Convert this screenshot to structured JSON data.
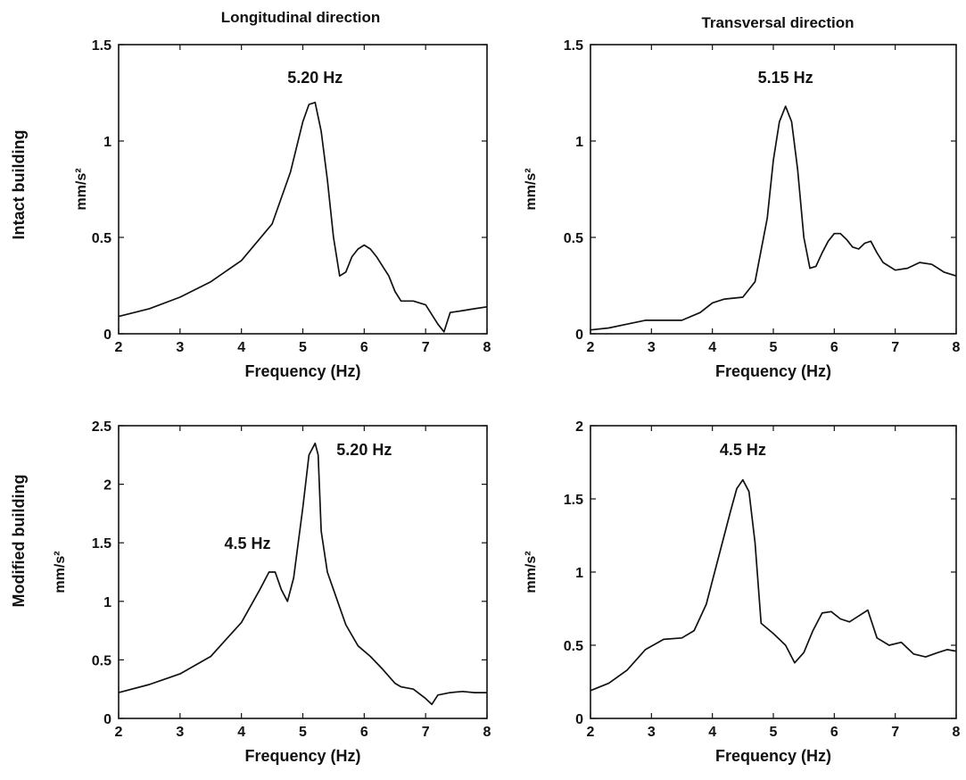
{
  "column_titles": [
    "Longitudinal direction",
    "Transversal direction"
  ],
  "row_labels": [
    "Intact building",
    "Modified building"
  ],
  "chart_data": [
    {
      "type": "line",
      "xlabel": "Frequency (Hz)",
      "ylabel": "mm/s²",
      "xlim": [
        2,
        8
      ],
      "ylim": [
        0,
        1.5
      ],
      "xticks": [
        "2",
        "3",
        "4",
        "5",
        "6",
        "7",
        "8"
      ],
      "yticks": [
        "0",
        "0.5",
        "1",
        "1.5"
      ],
      "annotations": [
        {
          "text": "5.20 Hz",
          "x": 5.2,
          "y": 1.3
        }
      ],
      "series": [
        {
          "x": [
            2.0,
            2.5,
            3.0,
            3.5,
            4.0,
            4.5,
            4.8,
            5.0,
            5.1,
            5.2,
            5.3,
            5.4,
            5.5,
            5.6,
            5.7,
            5.8,
            5.9,
            6.0,
            6.1,
            6.2,
            6.3,
            6.4,
            6.5,
            6.6,
            6.7,
            6.8,
            7.0,
            7.1,
            7.2,
            7.3,
            7.4,
            7.6,
            7.8,
            8.0
          ],
          "y": [
            0.09,
            0.13,
            0.19,
            0.27,
            0.38,
            0.57,
            0.84,
            1.1,
            1.19,
            1.2,
            1.05,
            0.8,
            0.5,
            0.3,
            0.32,
            0.4,
            0.44,
            0.46,
            0.44,
            0.4,
            0.35,
            0.3,
            0.22,
            0.17,
            0.17,
            0.17,
            0.15,
            0.1,
            0.05,
            0.01,
            0.11,
            0.12,
            0.13,
            0.14
          ]
        }
      ]
    },
    {
      "type": "line",
      "xlabel": "Frequency (Hz)",
      "ylabel": "mm/s²",
      "xlim": [
        2,
        8
      ],
      "ylim": [
        0,
        1.5
      ],
      "xticks": [
        "2",
        "3",
        "4",
        "5",
        "6",
        "7",
        "8"
      ],
      "yticks": [
        "0",
        "0.5",
        "1",
        "1.5"
      ],
      "annotations": [
        {
          "text": "5.15 Hz",
          "x": 5.2,
          "y": 1.3
        }
      ],
      "series": [
        {
          "x": [
            2.0,
            2.3,
            2.6,
            2.9,
            3.2,
            3.5,
            3.8,
            4.0,
            4.2,
            4.5,
            4.7,
            4.9,
            5.0,
            5.1,
            5.2,
            5.3,
            5.4,
            5.5,
            5.6,
            5.7,
            5.8,
            5.9,
            6.0,
            6.1,
            6.2,
            6.3,
            6.4,
            6.5,
            6.6,
            6.7,
            6.8,
            7.0,
            7.2,
            7.4,
            7.6,
            7.8,
            8.0
          ],
          "y": [
            0.02,
            0.03,
            0.05,
            0.07,
            0.07,
            0.07,
            0.11,
            0.16,
            0.18,
            0.19,
            0.27,
            0.6,
            0.9,
            1.1,
            1.18,
            1.1,
            0.85,
            0.5,
            0.34,
            0.35,
            0.42,
            0.48,
            0.52,
            0.52,
            0.49,
            0.45,
            0.44,
            0.47,
            0.48,
            0.42,
            0.37,
            0.33,
            0.34,
            0.37,
            0.36,
            0.32,
            0.3
          ]
        }
      ]
    },
    {
      "type": "line",
      "xlabel": "Frequency (Hz)",
      "ylabel": "mm/s²",
      "xlim": [
        2,
        8
      ],
      "ylim": [
        0,
        2.5
      ],
      "xticks": [
        "2",
        "3",
        "4",
        "5",
        "6",
        "7",
        "8"
      ],
      "yticks": [
        "0",
        "0.5",
        "1",
        "1.5",
        "2",
        "2.5"
      ],
      "annotations": [
        {
          "text": "4.5 Hz",
          "x": 4.1,
          "y": 1.45
        },
        {
          "text": "5.20 Hz",
          "x": 6.0,
          "y": 2.25
        }
      ],
      "series": [
        {
          "x": [
            2.0,
            2.5,
            3.0,
            3.5,
            4.0,
            4.3,
            4.45,
            4.55,
            4.65,
            4.75,
            4.85,
            5.0,
            5.1,
            5.2,
            5.25,
            5.3,
            5.4,
            5.5,
            5.7,
            5.9,
            6.1,
            6.3,
            6.5,
            6.6,
            6.8,
            7.0,
            7.1,
            7.2,
            7.4,
            7.6,
            7.8,
            8.0
          ],
          "y": [
            0.22,
            0.29,
            0.38,
            0.53,
            0.82,
            1.1,
            1.25,
            1.25,
            1.1,
            1.0,
            1.2,
            1.8,
            2.25,
            2.35,
            2.25,
            1.6,
            1.25,
            1.1,
            0.8,
            0.62,
            0.53,
            0.42,
            0.3,
            0.27,
            0.25,
            0.17,
            0.12,
            0.2,
            0.22,
            0.23,
            0.22,
            0.22
          ]
        }
      ]
    },
    {
      "type": "line",
      "xlabel": "Frequency (Hz)",
      "ylabel": "mm/s²",
      "xlim": [
        2,
        8
      ],
      "ylim": [
        0,
        2
      ],
      "xticks": [
        "2",
        "3",
        "4",
        "5",
        "6",
        "7",
        "8"
      ],
      "yticks": [
        "0",
        "0.5",
        "1",
        "1.5",
        "2"
      ],
      "annotations": [
        {
          "text": "4.5 Hz",
          "x": 4.5,
          "y": 1.8
        }
      ],
      "series": [
        {
          "x": [
            2.0,
            2.3,
            2.6,
            2.9,
            3.2,
            3.5,
            3.7,
            3.9,
            4.1,
            4.3,
            4.4,
            4.5,
            4.6,
            4.7,
            4.8,
            5.0,
            5.2,
            5.35,
            5.5,
            5.65,
            5.8,
            5.95,
            6.1,
            6.25,
            6.4,
            6.55,
            6.7,
            6.9,
            7.1,
            7.3,
            7.5,
            7.7,
            7.85,
            8.0
          ],
          "y": [
            0.19,
            0.24,
            0.33,
            0.47,
            0.54,
            0.55,
            0.6,
            0.78,
            1.1,
            1.42,
            1.57,
            1.63,
            1.55,
            1.2,
            0.65,
            0.58,
            0.5,
            0.38,
            0.45,
            0.6,
            0.72,
            0.73,
            0.68,
            0.66,
            0.7,
            0.74,
            0.55,
            0.5,
            0.52,
            0.44,
            0.42,
            0.45,
            0.47,
            0.46
          ]
        }
      ]
    }
  ]
}
